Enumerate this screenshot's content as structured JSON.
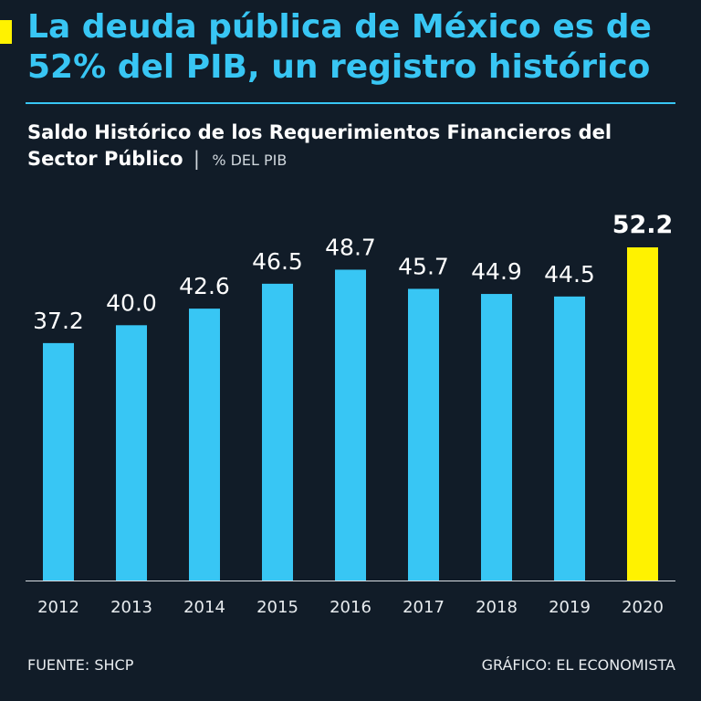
{
  "headline": "La deuda pública de México es de 52% del PIB, un registro histórico",
  "subtitle_main": "Saldo Histórico de los Requerimientos Financieros del Sector Público",
  "subtitle_sep": "|",
  "subtitle_unit": "% DEL PIB",
  "source": "FUENTE: SHCP",
  "credit": "GRÁFICO: EL ECONOMISTA",
  "colors": {
    "background": "#111c28",
    "bar": "#38c6f4",
    "highlight": "#fff200",
    "accent": "#38c6f4"
  },
  "chart_data": {
    "type": "bar",
    "title": "Saldo Histórico de los Requerimientos Financieros del Sector Público",
    "ylabel": "% DEL PIB",
    "xlabel": "",
    "categories": [
      "2012",
      "2013",
      "2014",
      "2015",
      "2016",
      "2017",
      "2018",
      "2019",
      "2020"
    ],
    "values": [
      37.2,
      40.0,
      42.6,
      46.5,
      48.7,
      45.7,
      44.9,
      44.5,
      52.2
    ],
    "data_labels": [
      "37.2",
      "40.0",
      "42.6",
      "46.5",
      "48.7",
      "45.7",
      "44.9",
      "44.5",
      "52.2"
    ],
    "highlight_category": "2020",
    "ylim": [
      0,
      52.2
    ],
    "grid": false,
    "legend": "none"
  }
}
